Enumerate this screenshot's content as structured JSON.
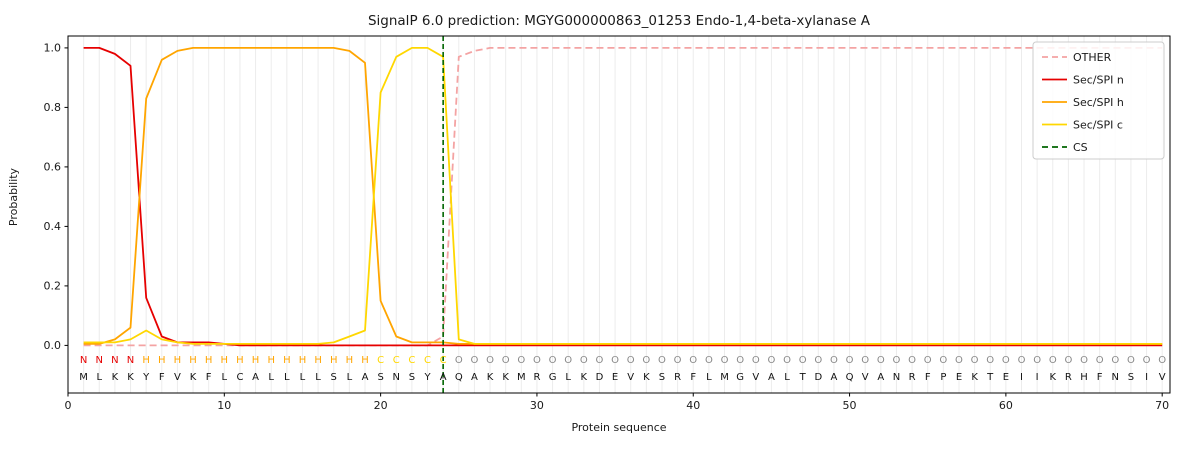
{
  "chart_data": {
    "type": "line",
    "title": "SignalP 6.0 prediction: MGYG000000863_01253 Endo-1,4-beta-xylanase A",
    "xlabel": "Protein sequence",
    "ylabel": "Probability",
    "xlim": [
      0,
      70.5
    ],
    "ylim": [
      -0.16,
      1.04
    ],
    "xticks": [
      0,
      10,
      20,
      30,
      40,
      50,
      60,
      70
    ],
    "yticks": [
      0.0,
      0.2,
      0.4,
      0.6,
      0.8,
      1.0
    ],
    "grid": "vertical-per-residue",
    "legend_position": "upper right",
    "cs_position": 24,
    "cs_color": "#006400",
    "style": {
      "grid_color": "#ececec",
      "background": "#ffffff",
      "frame_color": "#000000"
    },
    "series": [
      {
        "name": "OTHER",
        "color": "#f4a3a3",
        "dash": true,
        "values": [
          0,
          0,
          0,
          0,
          0,
          0,
          0,
          0,
          0,
          0,
          0,
          0,
          0,
          0,
          0,
          0,
          0,
          0,
          0,
          0,
          0,
          0,
          0,
          0.03,
          0.97,
          0.99,
          1.0,
          1.0,
          1.0,
          1.0,
          1.0,
          1.0,
          1.0,
          1.0,
          1.0,
          1.0,
          1.0,
          1.0,
          1.0,
          1.0,
          1.0,
          1.0,
          1.0,
          1.0,
          1.0,
          1.0,
          1.0,
          1.0,
          1.0,
          1.0,
          1.0,
          1.0,
          1.0,
          1.0,
          1.0,
          1.0,
          1.0,
          1.0,
          1.0,
          1.0,
          1.0,
          1.0,
          1.0,
          1.0,
          1.0,
          1.0,
          1.0,
          1.0,
          1.0,
          1.0
        ]
      },
      {
        "name": "Sec/SPI n",
        "color": "#e60000",
        "dash": false,
        "values": [
          1.0,
          1.0,
          0.98,
          0.94,
          0.16,
          0.03,
          0.01,
          0.01,
          0.01,
          0.005,
          0,
          0,
          0,
          0,
          0,
          0,
          0,
          0,
          0,
          0,
          0,
          0,
          0,
          0,
          0,
          0,
          0,
          0,
          0,
          0,
          0,
          0,
          0,
          0,
          0,
          0,
          0,
          0,
          0,
          0,
          0,
          0,
          0,
          0,
          0,
          0,
          0,
          0,
          0,
          0,
          0,
          0,
          0,
          0,
          0,
          0,
          0,
          0,
          0,
          0,
          0,
          0,
          0,
          0,
          0,
          0,
          0,
          0,
          0,
          0
        ]
      },
      {
        "name": "Sec/SPI h",
        "color": "#ffa500",
        "dash": false,
        "values": [
          0.005,
          0.005,
          0.02,
          0.06,
          0.83,
          0.96,
          0.99,
          1.0,
          1.0,
          1.0,
          1.0,
          1.0,
          1.0,
          1.0,
          1.0,
          1.0,
          1.0,
          0.99,
          0.95,
          0.15,
          0.03,
          0.01,
          0.01,
          0.01,
          0.005,
          0.005,
          0.005,
          0.005,
          0.005,
          0.005,
          0.005,
          0.005,
          0.005,
          0.005,
          0.005,
          0.005,
          0.005,
          0.005,
          0.005,
          0.005,
          0.005,
          0.005,
          0.005,
          0.005,
          0.005,
          0.005,
          0.005,
          0.005,
          0.005,
          0.005,
          0.005,
          0.005,
          0.005,
          0.005,
          0.005,
          0.005,
          0.005,
          0.005,
          0.005,
          0.005,
          0.005,
          0.005,
          0.005,
          0.005,
          0.005,
          0.005,
          0.005,
          0.005,
          0.005,
          0.005
        ]
      },
      {
        "name": "Sec/SPI c",
        "color": "#ffd700",
        "dash": false,
        "values": [
          0.01,
          0.01,
          0.01,
          0.02,
          0.05,
          0.02,
          0.01,
          0.005,
          0.005,
          0.005,
          0.005,
          0.005,
          0.005,
          0.005,
          0.005,
          0.005,
          0.01,
          0.03,
          0.05,
          0.85,
          0.97,
          1.0,
          1.0,
          0.97,
          0.02,
          0.005,
          0.005,
          0.005,
          0.005,
          0.005,
          0.005,
          0.005,
          0.005,
          0.005,
          0.005,
          0.005,
          0.005,
          0.005,
          0.005,
          0.005,
          0.005,
          0.005,
          0.005,
          0.005,
          0.005,
          0.005,
          0.005,
          0.005,
          0.005,
          0.005,
          0.005,
          0.005,
          0.005,
          0.005,
          0.005,
          0.005,
          0.005,
          0.005,
          0.005,
          0.005,
          0.005,
          0.005,
          0.005,
          0.005,
          0.005,
          0.005,
          0.005,
          0.005,
          0.005,
          0.005
        ]
      }
    ],
    "legend": [
      {
        "label": "OTHER",
        "color": "#f4a3a3",
        "dash": true
      },
      {
        "label": "Sec/SPI n",
        "color": "#e60000",
        "dash": false
      },
      {
        "label": "Sec/SPI h",
        "color": "#ffa500",
        "dash": false
      },
      {
        "label": "Sec/SPI c",
        "color": "#ffd700",
        "dash": false
      },
      {
        "label": "CS",
        "color": "#006400",
        "dash": true
      }
    ],
    "sequence": "MLKKYFVKFLCALLLLSLASNSYAQAKKMRGLKDEVKSRFLMGVALTDAQVANRFPEKTEIIKRHFNSIV",
    "region_labels": "NNNNHHHHHHHHHHHHHHHCCCCCOOOOOOOOOOOOOOOOOOOOOOOOOOOOOOOOOOOOOOOOOOOOOO",
    "region_colors": {
      "N": "#e60000",
      "H": "#ffa500",
      "C": "#ffd700",
      "O": "#8a8a8a"
    },
    "residue_color": "#111111"
  }
}
